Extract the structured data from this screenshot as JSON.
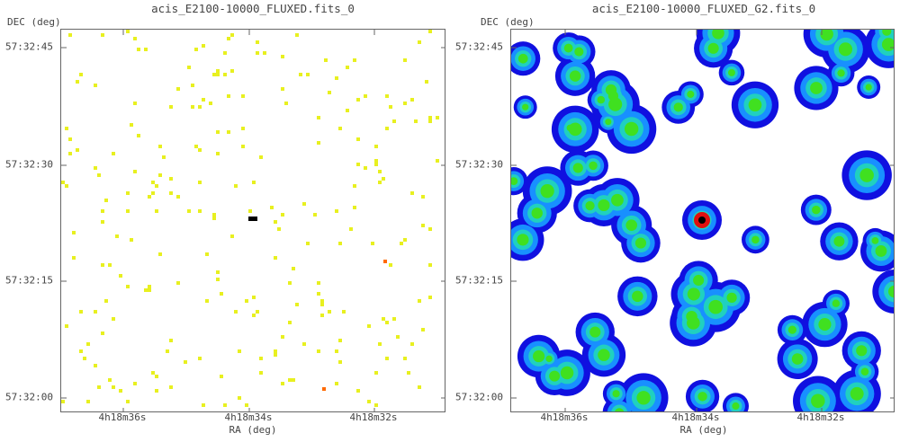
{
  "left_panel": {
    "title": "acis_E2100-10000_FLUXED.fits_0",
    "dec_axis_label": "DEC (deg)",
    "ra_axis_label": "RA (deg)",
    "y_ticks": [
      "57:32:45",
      "57:32:30",
      "57:32:15",
      "57:32:00"
    ],
    "x_ticks": [
      "4h18m36s",
      "4h18m34s",
      "4h18m32s"
    ],
    "colors": {
      "background": "#ffffff",
      "low": "#e8f020",
      "mid": "#ff6a00",
      "peak": "#000000"
    }
  },
  "right_panel": {
    "title": "acis_E2100-10000_FLUXED_G2.fits_0",
    "dec_axis_label": "DEC (deg)",
    "ra_axis_label": "RA (deg)",
    "y_ticks": [
      "57:32:45",
      "57:32:30",
      "57:32:15",
      "57:32:00"
    ],
    "x_ticks": [
      "4h18m36s",
      "4h18m34s",
      "4h18m32s"
    ],
    "colors": {
      "background": "#ffffff",
      "outer": "#1010e0",
      "mid": "#1890ff",
      "inner": "#20d0c0",
      "high": "#40e020",
      "peak": "#e01010",
      "core": "#000000"
    }
  }
}
